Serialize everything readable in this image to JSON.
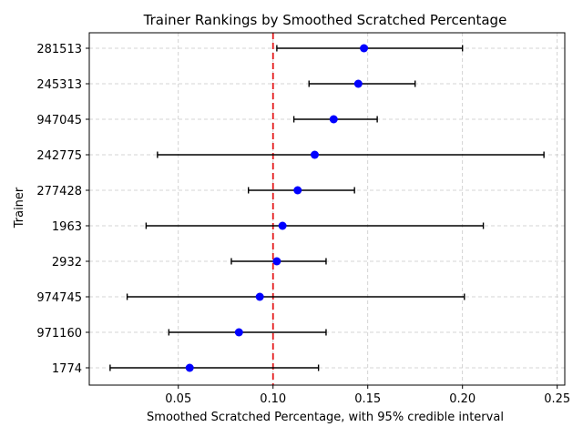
{
  "chart_data": {
    "type": "scatter",
    "title": "Trainer Rankings by Smoothed Scratched Percentage",
    "xlabel": "Smoothed Scratched Percentage, with 95% credible interval",
    "ylabel": "Trainer",
    "xlim": [
      0.003,
      0.254
    ],
    "xticks": [
      0.05,
      0.1,
      0.15,
      0.2,
      0.25
    ],
    "xtick_labels": [
      "0.05",
      "0.10",
      "0.15",
      "0.20",
      "0.25"
    ],
    "grid": true,
    "reference_line": {
      "x": 0.1,
      "color": "#e41a1c",
      "style": "dashed"
    },
    "point_color": "#0000ff",
    "errorbar_color": "#000000",
    "series": [
      {
        "trainer": "281513",
        "estimate": 0.148,
        "lower": 0.102,
        "upper": 0.2
      },
      {
        "trainer": "245313",
        "estimate": 0.145,
        "lower": 0.119,
        "upper": 0.175
      },
      {
        "trainer": "947045",
        "estimate": 0.132,
        "lower": 0.111,
        "upper": 0.155
      },
      {
        "trainer": "242775",
        "estimate": 0.122,
        "lower": 0.039,
        "upper": 0.243
      },
      {
        "trainer": "277428",
        "estimate": 0.113,
        "lower": 0.087,
        "upper": 0.143
      },
      {
        "trainer": "1963",
        "estimate": 0.105,
        "lower": 0.033,
        "upper": 0.211
      },
      {
        "trainer": "2932",
        "estimate": 0.102,
        "lower": 0.078,
        "upper": 0.128
      },
      {
        "trainer": "974745",
        "estimate": 0.093,
        "lower": 0.023,
        "upper": 0.201
      },
      {
        "trainer": "971160",
        "estimate": 0.082,
        "lower": 0.045,
        "upper": 0.128
      },
      {
        "trainer": "1774",
        "estimate": 0.056,
        "lower": 0.014,
        "upper": 0.124
      }
    ]
  }
}
